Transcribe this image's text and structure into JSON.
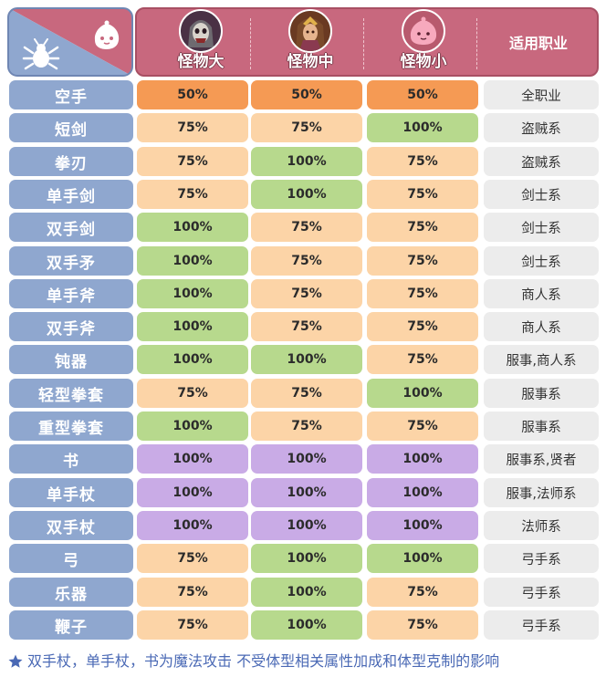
{
  "header": {
    "monsters": [
      {
        "label": "怪物大",
        "icon": "large-monster-skull-icon"
      },
      {
        "label": "怪物中",
        "icon": "medium-monster-warrior-icon"
      },
      {
        "label": "怪物小",
        "icon": "small-monster-poring-icon"
      }
    ],
    "job_header": "适用职业",
    "corner_icons": [
      "bug-monster-icon",
      "poring-face-icon"
    ]
  },
  "rows": [
    {
      "weapon": "空手",
      "values": [
        "50%",
        "50%",
        "50%"
      ],
      "types": [
        "p50",
        "p50",
        "p50"
      ],
      "job": "全职业"
    },
    {
      "weapon": "短剑",
      "values": [
        "75%",
        "75%",
        "100%"
      ],
      "types": [
        "p75",
        "p75",
        "p100"
      ],
      "job": "盗贼系"
    },
    {
      "weapon": "拳刃",
      "values": [
        "75%",
        "100%",
        "75%"
      ],
      "types": [
        "p75",
        "p100",
        "p75"
      ],
      "job": "盗贼系"
    },
    {
      "weapon": "单手剑",
      "values": [
        "75%",
        "100%",
        "75%"
      ],
      "types": [
        "p75",
        "p100",
        "p75"
      ],
      "job": "剑士系"
    },
    {
      "weapon": "双手剑",
      "values": [
        "100%",
        "75%",
        "75%"
      ],
      "types": [
        "p100",
        "p75",
        "p75"
      ],
      "job": "剑士系"
    },
    {
      "weapon": "双手矛",
      "values": [
        "100%",
        "75%",
        "75%"
      ],
      "types": [
        "p100",
        "p75",
        "p75"
      ],
      "job": "剑士系"
    },
    {
      "weapon": "单手斧",
      "values": [
        "100%",
        "75%",
        "75%"
      ],
      "types": [
        "p100",
        "p75",
        "p75"
      ],
      "job": "商人系"
    },
    {
      "weapon": "双手斧",
      "values": [
        "100%",
        "75%",
        "75%"
      ],
      "types": [
        "p100",
        "p75",
        "p75"
      ],
      "job": "商人系"
    },
    {
      "weapon": "钝器",
      "values": [
        "100%",
        "100%",
        "75%"
      ],
      "types": [
        "p100",
        "p100",
        "p75"
      ],
      "job": "服事,商人系"
    },
    {
      "weapon": "轻型拳套",
      "values": [
        "75%",
        "75%",
        "100%"
      ],
      "types": [
        "p75",
        "p75",
        "p100"
      ],
      "job": "服事系"
    },
    {
      "weapon": "重型拳套",
      "values": [
        "100%",
        "75%",
        "75%"
      ],
      "types": [
        "p100",
        "p75",
        "p75"
      ],
      "job": "服事系"
    },
    {
      "weapon": "书",
      "values": [
        "100%",
        "100%",
        "100%"
      ],
      "types": [
        "pmag",
        "pmag",
        "pmag"
      ],
      "job": "服事系,贤者"
    },
    {
      "weapon": "单手杖",
      "values": [
        "100%",
        "100%",
        "100%"
      ],
      "types": [
        "pmag",
        "pmag",
        "pmag"
      ],
      "job": "服事,法师系"
    },
    {
      "weapon": "双手杖",
      "values": [
        "100%",
        "100%",
        "100%"
      ],
      "types": [
        "pmag",
        "pmag",
        "pmag"
      ],
      "job": "法师系"
    },
    {
      "weapon": "弓",
      "values": [
        "75%",
        "100%",
        "100%"
      ],
      "types": [
        "p75",
        "p100",
        "p100"
      ],
      "job": "弓手系"
    },
    {
      "weapon": "乐器",
      "values": [
        "75%",
        "100%",
        "75%"
      ],
      "types": [
        "p75",
        "p100",
        "p75"
      ],
      "job": "弓手系"
    },
    {
      "weapon": "鞭子",
      "values": [
        "75%",
        "100%",
        "75%"
      ],
      "types": [
        "p75",
        "p100",
        "p75"
      ],
      "job": "弓手系"
    }
  ],
  "footnote": {
    "icon": "star-icon",
    "text": "双手杖，单手杖，书为魔法攻击  不受体型相关属性加成和体型克制的影响"
  },
  "colors": {
    "header": "#c8687e",
    "weapon_cell": "#8fa7cf",
    "pct_50": "#f59a54",
    "pct_75": "#fcd4a7",
    "pct_100": "#b7d98d",
    "magic": "#c9abe6",
    "job_cell": "#ececec",
    "footnote": "#4a69b5"
  }
}
